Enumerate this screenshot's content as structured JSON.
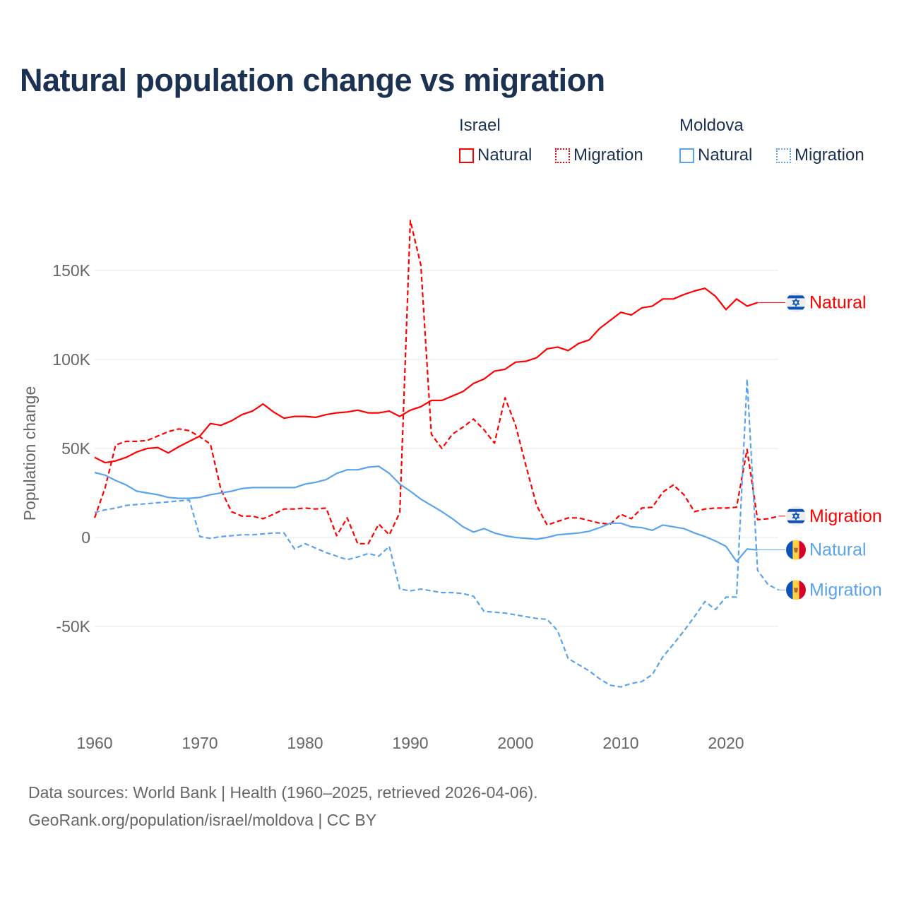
{
  "title": "Natural population change vs migration",
  "legend": {
    "groups": [
      {
        "name": "Israel",
        "items": [
          "Natural",
          "Migration"
        ],
        "color": "#ff0000"
      },
      {
        "name": "Moldova",
        "items": [
          "Natural",
          "Migration"
        ],
        "color": "#5ba4ea"
      }
    ]
  },
  "footer": {
    "line1": "Data sources: World Bank | Health (1960–2025, retrieved 2026-04-06).",
    "line2": "GeoRank.org/population/israel/moldova | CC BY"
  },
  "chart_data": {
    "type": "line",
    "title": "Natural population change vs migration",
    "xlabel": "",
    "ylabel": "Population change",
    "xlim": [
      1960,
      2025
    ],
    "ylim": [
      -100000,
      185000
    ],
    "x_ticks": [
      1960,
      1970,
      1980,
      1990,
      2000,
      2010,
      2020
    ],
    "x_tick_labels": [
      "1960",
      "1970",
      "1980",
      "1990",
      "2000",
      "2010",
      "2020"
    ],
    "y_ticks": [
      -50000,
      0,
      50000,
      100000,
      150000
    ],
    "y_tick_labels": [
      "-50K",
      "0",
      "50K",
      "100K",
      "150K"
    ],
    "grid": true,
    "legend_position": "top-right",
    "x_start": 1960,
    "series": [
      {
        "name": "Israel Natural",
        "label": "Natural",
        "country": "Israel",
        "color": "#ff0000",
        "dashed": false,
        "values": [
          45,
          42,
          43,
          45,
          48,
          50,
          50.5,
          47.5,
          51,
          54,
          57,
          64,
          63,
          65.5,
          69,
          71,
          75,
          70.5,
          67,
          68,
          68,
          67.5,
          69,
          70,
          70.5,
          71.5,
          70,
          70,
          71,
          68,
          71.5,
          73.5,
          77,
          77,
          79.5,
          82,
          86.5,
          89,
          93.5,
          94.5,
          98.5,
          99,
          101,
          106,
          107,
          105,
          109,
          111,
          117.5,
          122,
          126.5,
          125,
          129,
          130,
          134,
          134,
          136.5,
          138.5,
          140,
          135.5,
          128,
          134,
          130,
          132
        ]
      },
      {
        "name": "Israel Migration",
        "label": "Migration",
        "country": "Israel",
        "color": "#ff0000",
        "dashed": true,
        "values": [
          11,
          28,
          52,
          54,
          54,
          54.5,
          57,
          59.5,
          61,
          60,
          56.5,
          52.5,
          27,
          14.5,
          12,
          12,
          10.5,
          13,
          16,
          16,
          16.5,
          16,
          16.5,
          1,
          11,
          -3.5,
          -3.5,
          7.5,
          1.5,
          14,
          178,
          153,
          58,
          50,
          58,
          62,
          66.5,
          60.5,
          53,
          78.5,
          63,
          40,
          18,
          7,
          9,
          11,
          11,
          9.5,
          8,
          7.5,
          13,
          10.5,
          16.5,
          17,
          25.5,
          29.5,
          24,
          14.5,
          16,
          16.5,
          16.5,
          17,
          49.5,
          10,
          10.5,
          12
        ]
      },
      {
        "name": "Moldova Natural",
        "label": "Natural",
        "country": "Moldova",
        "color": "#5ba4ea",
        "dashed": false,
        "values": [
          36.5,
          35,
          32,
          29.5,
          26,
          25,
          24,
          22.5,
          22,
          22,
          22.5,
          24,
          25,
          26,
          27.5,
          28,
          28,
          28,
          28,
          28,
          30,
          31,
          32.5,
          36,
          38,
          38,
          39.5,
          40,
          36,
          30,
          26,
          21.5,
          18,
          14.5,
          10.5,
          6,
          3,
          5,
          2.5,
          1,
          0,
          -0.5,
          -1,
          0,
          1.5,
          2,
          2.5,
          3.5,
          5.5,
          8,
          8,
          6,
          5.5,
          4,
          7,
          6,
          5,
          2.5,
          0.5,
          -2,
          -5,
          -13.5,
          -6.5,
          -7
        ]
      },
      {
        "name": "Moldova Migration",
        "label": "Migration",
        "country": "Moldova",
        "color": "#5ba4ea",
        "dashed": true,
        "values": [
          14,
          15.5,
          16.5,
          18,
          18.5,
          19,
          19.5,
          20,
          20.5,
          21,
          0.5,
          -0.5,
          0.5,
          1,
          1.5,
          1.5,
          2,
          2.5,
          2.5,
          -6.5,
          -3.5,
          -6,
          -8.5,
          -10.5,
          -12.5,
          -11,
          -9,
          -10.5,
          -5,
          -29,
          -30,
          -29,
          -30,
          -31,
          -31,
          -31.5,
          -33,
          -41.5,
          -42,
          -42.5,
          -43.5,
          -44.5,
          -45.5,
          -46,
          -52.5,
          -68,
          -71.5,
          -75,
          -79.5,
          -83,
          -84,
          -82,
          -81,
          -77,
          -67,
          -60,
          -52.5,
          -44.5,
          -36,
          -40.5,
          -33.5,
          -33.5,
          89,
          -18.5,
          -26.5,
          -29.5
        ]
      }
    ],
    "value_unit": "thousands"
  }
}
